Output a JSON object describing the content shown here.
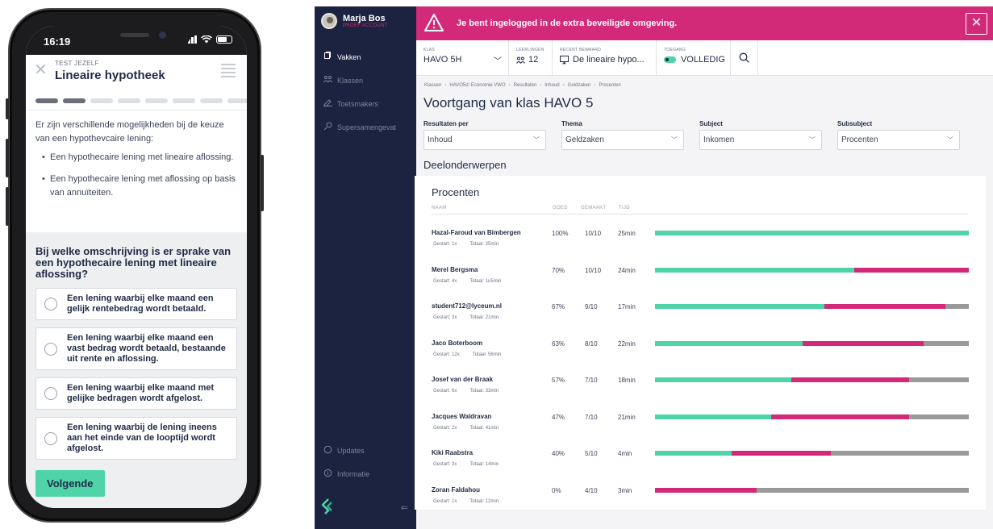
{
  "colors": {
    "accent_green": "#4fd4a9",
    "accent_pink": "#d22a79",
    "neutral_grey": "#9a9a9a",
    "sidebar_bg": "#1c2340"
  },
  "phone": {
    "status": {
      "time": "16:19"
    },
    "quiz": {
      "kicker": "TEST JEZELF",
      "title": "Lineaire hypotheek",
      "progress": {
        "current": 2,
        "total": 8
      },
      "intro": "Er zijn verschillende mogelijkheden bij de keuze van een hypothevcaire lening:",
      "bullets": [
        "Een hypothecaire lening met lineaire aflossing.",
        "Een hypothecaire lening met aflossing op basis van annuïteiten."
      ],
      "question": "Bij welke omschrijving is er sprake van een hypothecaire lening met lineaire aflossing?",
      "options": [
        "Een lening waarbij elke maand een gelijk rentebedrag wordt betaald.",
        "Een lening waarbij elke maand een vast bedrag wordt betaald, bestaande uit rente en aflossing.",
        "Een lening waarbij elke maand met gelijke bedragen wordt afgelost.",
        "Een lening waarbij de lening ineens aan het einde van de looptijd wordt afgelost."
      ],
      "next_label": "Volgende"
    }
  },
  "dashboard": {
    "user": {
      "name": "Marja Bos",
      "role": "PROEF ACCOUNT"
    },
    "nav": [
      {
        "label": "Vakken",
        "icon": "book-icon"
      },
      {
        "label": "Klassen",
        "icon": "group-icon"
      },
      {
        "label": "Toetsmakers",
        "icon": "pencil-icon"
      },
      {
        "label": "Supersamengevat",
        "icon": "summary-icon"
      }
    ],
    "nav_bottom": [
      {
        "label": "Updates",
        "icon": "refresh-icon"
      },
      {
        "label": "Informatie",
        "icon": "info-icon"
      }
    ],
    "alert": {
      "text": "Je bent ingelogged in de extra beveiligde omgeving."
    },
    "filterbar": {
      "klas": {
        "label": "KLAS",
        "value": "HAVO 5H"
      },
      "leerlingen": {
        "label": "LEERLINGEN",
        "value": "12"
      },
      "recent": {
        "label": "RECENT BEWAARD",
        "value": "De lineaire hypo..."
      },
      "toegang": {
        "label": "TOEGANG",
        "value": "VOLLEDIG"
      }
    },
    "breadcrumb": [
      "Klassen",
      "HAVO5d: Economie VWO",
      "Resultaten",
      "Inhoud",
      "Geldzaken",
      "Procenten"
    ],
    "page_title": "Voortgang van klas HAVO 5",
    "filters": [
      {
        "label": "Resultaten per",
        "value": "Inhoud"
      },
      {
        "label": "Thema",
        "value": "Geldzaken"
      },
      {
        "label": "Subject",
        "value": "Inkomen"
      },
      {
        "label": "Subsubject",
        "value": "Procenten"
      }
    ],
    "section_title": "Deelonderwerpen",
    "results": {
      "title": "Procenten",
      "columns": {
        "name": "NAAM",
        "goed": "GOED",
        "gemaakt": "GEMAAKT",
        "tijd": "TIJD"
      },
      "rows": [
        {
          "name": "Hazal-Faroud van Bimbergen",
          "goed": "100%",
          "gemaakt": "10/10",
          "tijd": "25min",
          "gestart": "Gestart: 1x",
          "totaal": "Totaal: 25min",
          "bar": [
            1.0,
            0.0,
            0.0
          ]
        },
        {
          "name": "Merel Bergsma",
          "goed": "70%",
          "gemaakt": "10/10",
          "tijd": "24min",
          "gestart": "Gestart: 4x",
          "totaal": "Totaal: 1u5min",
          "bar": [
            0.635,
            0.365,
            0.0
          ]
        },
        {
          "name": "student712@lyceum.nl",
          "goed": "67%",
          "gemaakt": "9/10",
          "tijd": "17min",
          "gestart": "Gestart: 3x",
          "totaal": "Totaal: 21min",
          "bar": [
            0.54,
            0.385,
            0.075
          ]
        },
        {
          "name": "Jaco Boterboom",
          "goed": "63%",
          "gemaakt": "8/10",
          "tijd": "22min",
          "gestart": "Gestart: 12x",
          "totaal": "Totaal: 56min",
          "bar": [
            0.47,
            0.385,
            0.145
          ]
        },
        {
          "name": "Josef van der Braak",
          "goed": "57%",
          "gemaakt": "7/10",
          "tijd": "18min",
          "gestart": "Gestart: 6x",
          "totaal": "Totaal: 33min",
          "bar": [
            0.435,
            0.375,
            0.19
          ]
        },
        {
          "name": "Jacques Waldravan",
          "goed": "47%",
          "gemaakt": "7/10",
          "tijd": "21min",
          "gestart": "Gestart: 2x",
          "totaal": "Totaal: 41min",
          "bar": [
            0.37,
            0.44,
            0.19
          ]
        },
        {
          "name": "Kiki Raabstra",
          "goed": "40%",
          "gemaakt": "5/10",
          "tijd": "4min",
          "gestart": "Gestart: 3x",
          "totaal": "Totaal: 14min",
          "bar": [
            0.245,
            0.315,
            0.44
          ]
        },
        {
          "name": "Zoran Faldahou",
          "goed": "0%",
          "gemaakt": "4/10",
          "tijd": "3min",
          "gestart": "Gestart: 1x",
          "totaal": "Totaal: 12min",
          "bar": [
            0.0,
            0.325,
            0.675
          ]
        }
      ]
    }
  }
}
